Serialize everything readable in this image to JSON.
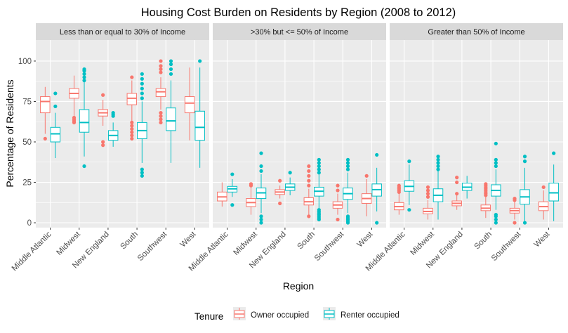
{
  "chart_data": {
    "type": "boxplot",
    "title": "Housing Cost Burden on Residents by Region (2008 to 2012)",
    "xlabel": "Region",
    "ylabel": "Percentage of Residents",
    "ylim": [
      -3,
      113
    ],
    "yticks": [
      0,
      25,
      50,
      75,
      100
    ],
    "categories": [
      "Middle Atlantic",
      "Midwest",
      "New England",
      "South",
      "Southwest",
      "West"
    ],
    "legend": {
      "title": "Tenure",
      "position": "bottom",
      "entries": [
        {
          "name": "Owner occupied",
          "color": "#F8766D"
        },
        {
          "name": "Renter occupied",
          "color": "#00BFC4"
        }
      ]
    },
    "grid": true,
    "background_color": "#EBEBEB",
    "strip_color": "#D9D9D9",
    "panels": [
      {
        "label": "Less than or equal to 30% of Income",
        "owner": [
          {
            "region": "Middle Atlantic",
            "q1": 68,
            "median": 75,
            "q3": 78,
            "whisker_low": 55,
            "whisker_high": 84,
            "outliers": [
              52
            ]
          },
          {
            "region": "Midwest",
            "q1": 77,
            "median": 80,
            "q3": 83,
            "whisker_low": 65,
            "whisker_high": 91,
            "outliers": [
              62,
              63,
              64,
              65
            ]
          },
          {
            "region": "New England",
            "q1": 66,
            "median": 68,
            "q3": 70,
            "whisker_low": 60,
            "whisker_high": 76,
            "outliers": [
              48,
              50,
              79
            ]
          },
          {
            "region": "South",
            "q1": 73,
            "median": 77,
            "q3": 80,
            "whisker_low": 63,
            "whisker_high": 88,
            "outliers": [
              52,
              54,
              56,
              58,
              60,
              62,
              90
            ]
          },
          {
            "region": "Southwest",
            "q1": 78,
            "median": 81,
            "q3": 83,
            "whisker_low": 70,
            "whisker_high": 90,
            "outliers": [
              62,
              64,
              66,
              68,
              93,
              95,
              97,
              100
            ]
          },
          {
            "region": "West",
            "q1": 68,
            "median": 74,
            "q3": 78,
            "whisker_low": 51,
            "whisker_high": 96,
            "outliers": []
          }
        ],
        "renter": [
          {
            "region": "Middle Atlantic",
            "q1": 50,
            "median": 55,
            "q3": 59,
            "whisker_low": 40,
            "whisker_high": 68,
            "outliers": [
              72,
              80
            ]
          },
          {
            "region": "Midwest",
            "q1": 56,
            "median": 62,
            "q3": 70,
            "whisker_low": 41,
            "whisker_high": 87,
            "outliers": [
              35,
              88,
              90,
              92,
              94,
              95
            ]
          },
          {
            "region": "New England",
            "q1": 51,
            "median": 54,
            "q3": 57,
            "whisker_low": 47,
            "whisker_high": 62,
            "outliers": [
              66,
              67,
              68
            ]
          },
          {
            "region": "South",
            "q1": 52,
            "median": 57,
            "q3": 62,
            "whisker_low": 37,
            "whisker_high": 75,
            "outliers": [
              29,
              31,
              33,
              77,
              80,
              83,
              86,
              89,
              92
            ]
          },
          {
            "region": "Southwest",
            "q1": 57,
            "median": 63,
            "q3": 71,
            "whisker_low": 37,
            "whisker_high": 88,
            "outliers": [
              92,
              95,
              98,
              100
            ]
          },
          {
            "region": "West",
            "q1": 51,
            "median": 59,
            "q3": 69,
            "whisker_low": 34,
            "whisker_high": 96,
            "outliers": [
              100
            ]
          }
        ]
      },
      {
        "label": ">30% but <= 50% of Income",
        "owner": [
          {
            "region": "Middle Atlantic",
            "q1": 13.5,
            "median": 16,
            "q3": 19,
            "whisker_low": 10,
            "whisker_high": 25,
            "outliers": []
          },
          {
            "region": "Midwest",
            "q1": 10,
            "median": 12.5,
            "q3": 15,
            "whisker_low": 5,
            "whisker_high": 22,
            "outliers": [
              23,
              24
            ]
          },
          {
            "region": "New England",
            "q1": 17.5,
            "median": 19,
            "q3": 20.5,
            "whisker_low": 15,
            "whisker_high": 23,
            "outliers": [
              12,
              26
            ]
          },
          {
            "region": "South",
            "q1": 11,
            "median": 13,
            "q3": 15.5,
            "whisker_low": 5,
            "whisker_high": 21,
            "outliers": [
              4,
              23,
              26,
              29,
              32,
              35
            ]
          },
          {
            "region": "Southwest",
            "q1": 9,
            "median": 11,
            "q3": 13,
            "whisker_low": 5,
            "whisker_high": 18,
            "outliers": [
              2,
              20,
              23
            ]
          },
          {
            "region": "West",
            "q1": 12,
            "median": 15,
            "q3": 18,
            "whisker_low": 4,
            "whisker_high": 27,
            "outliers": [
              29
            ]
          }
        ],
        "renter": [
          {
            "region": "Middle Atlantic",
            "q1": 19,
            "median": 21,
            "q3": 22.5,
            "whisker_low": 16,
            "whisker_high": 27,
            "outliers": [
              11,
              30
            ]
          },
          {
            "region": "Midwest",
            "q1": 15,
            "median": 18.5,
            "q3": 21.5,
            "whisker_low": 6,
            "whisker_high": 30,
            "outliers": [
              0,
              2,
              4,
              32,
              35,
              43
            ]
          },
          {
            "region": "New England",
            "q1": 20,
            "median": 22,
            "q3": 24,
            "whisker_low": 17,
            "whisker_high": 28,
            "outliers": [
              31
            ]
          },
          {
            "region": "South",
            "q1": 16.5,
            "median": 19.5,
            "q3": 22,
            "whisker_low": 9,
            "whisker_high": 30,
            "outliers": [
              2,
              3,
              4,
              5,
              6,
              7,
              8,
              31,
              33,
              35,
              37,
              39
            ]
          },
          {
            "region": "Southwest",
            "q1": 14.5,
            "median": 18,
            "q3": 21.5,
            "whisker_low": 6,
            "whisker_high": 31,
            "outliers": [
              0,
              1,
              2,
              3,
              4,
              33,
              35,
              37,
              39
            ]
          },
          {
            "region": "West",
            "q1": 16.5,
            "median": 20.5,
            "q3": 24,
            "whisker_low": 7,
            "whisker_high": 34,
            "outliers": [
              0,
              42
            ]
          }
        ]
      },
      {
        "label": "Greater than 50% of Income",
        "owner": [
          {
            "region": "Middle Atlantic",
            "q1": 8,
            "median": 10,
            "q3": 12.5,
            "whisker_low": 5,
            "whisker_high": 18,
            "outliers": [
              19,
              20,
              21,
              22,
              23
            ]
          },
          {
            "region": "Midwest",
            "q1": 5.5,
            "median": 7,
            "q3": 9,
            "whisker_low": 2,
            "whisker_high": 14,
            "outliers": [
              16,
              18,
              20,
              22
            ]
          },
          {
            "region": "New England",
            "q1": 10.5,
            "median": 12,
            "q3": 13.5,
            "whisker_low": 8,
            "whisker_high": 17,
            "outliers": [
              18,
              25,
              28
            ]
          },
          {
            "region": "South",
            "q1": 7.5,
            "median": 9,
            "q3": 11,
            "whisker_low": 3,
            "whisker_high": 16,
            "outliers": [
              17,
              18,
              19,
              20,
              21,
              22,
              23,
              24
            ]
          },
          {
            "region": "Southwest",
            "q1": 6,
            "median": 7.5,
            "q3": 9,
            "whisker_low": 2,
            "whisker_high": 13,
            "outliers": [
              0,
              14,
              15
            ]
          },
          {
            "region": "West",
            "q1": 7.5,
            "median": 10,
            "q3": 13,
            "whisker_low": 2,
            "whisker_high": 20,
            "outliers": [
              22
            ]
          }
        ],
        "renter": [
          {
            "region": "Middle Atlantic",
            "q1": 19.5,
            "median": 22.5,
            "q3": 26,
            "whisker_low": 11,
            "whisker_high": 36,
            "outliers": [
              8,
              38
            ]
          },
          {
            "region": "Midwest",
            "q1": 13,
            "median": 17,
            "q3": 21,
            "whisker_low": 2,
            "whisker_high": 32,
            "outliers": [
              33,
              35,
              37,
              39,
              41
            ]
          },
          {
            "region": "New England",
            "q1": 20,
            "median": 22,
            "q3": 24.5,
            "whisker_low": 15,
            "whisker_high": 29,
            "outliers": []
          },
          {
            "region": "South",
            "q1": 16.5,
            "median": 20,
            "q3": 23.5,
            "whisker_low": 8,
            "whisker_high": 33,
            "outliers": [
              0,
              2,
              4,
              5,
              35,
              37,
              39,
              49
            ]
          },
          {
            "region": "Southwest",
            "q1": 11.5,
            "median": 16,
            "q3": 20.5,
            "whisker_low": 1,
            "whisker_high": 34,
            "outliers": [
              0,
              38,
              41
            ]
          },
          {
            "region": "West",
            "q1": 13.5,
            "median": 18.5,
            "q3": 24.5,
            "whisker_low": 1,
            "whisker_high": 36,
            "outliers": [
              43
            ]
          }
        ]
      }
    ]
  }
}
